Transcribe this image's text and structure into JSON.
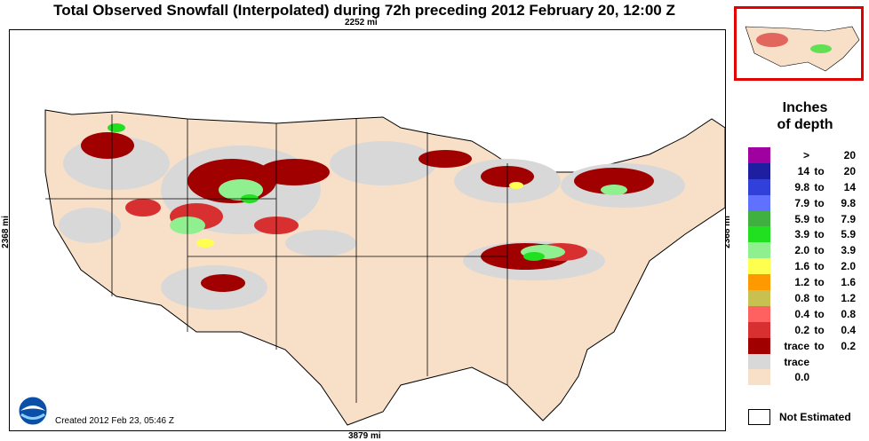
{
  "title": "Total Observed Snowfall (Interpolated) during 72h preceding 2012 February 20, 12:00 Z",
  "distance_top": "2252 mi",
  "distance_bottom": "3879 mi",
  "distance_left": "2368 mi",
  "distance_right": "2368 mi",
  "created": "Created 2012 Feb 23, 05:46 Z",
  "legend_title_1": "Inches",
  "legend_title_2": "of depth",
  "legend": [
    {
      "lo": ">",
      "to": "",
      "hi": "20",
      "color": "#a000a0"
    },
    {
      "lo": "14",
      "to": "to",
      "hi": "20",
      "color": "#1e1ea0"
    },
    {
      "lo": "9.8",
      "to": "to",
      "hi": "14",
      "color": "#3040d8"
    },
    {
      "lo": "7.9",
      "to": "to",
      "hi": "9.8",
      "color": "#6070ff"
    },
    {
      "lo": "5.9",
      "to": "to",
      "hi": "7.9",
      "color": "#40b040"
    },
    {
      "lo": "3.9",
      "to": "to",
      "hi": "5.9",
      "color": "#20e020"
    },
    {
      "lo": "2.0",
      "to": "to",
      "hi": "3.9",
      "color": "#90f090"
    },
    {
      "lo": "1.6",
      "to": "to",
      "hi": "2.0",
      "color": "#ffff50"
    },
    {
      "lo": "1.2",
      "to": "to",
      "hi": "1.6",
      "color": "#ff9900"
    },
    {
      "lo": "0.8",
      "to": "to",
      "hi": "1.2",
      "color": "#c8c050"
    },
    {
      "lo": "0.4",
      "to": "to",
      "hi": "0.8",
      "color": "#ff6060"
    },
    {
      "lo": "0.2",
      "to": "to",
      "hi": "0.4",
      "color": "#d83030"
    },
    {
      "lo": "trace",
      "to": "to",
      "hi": "0.2",
      "color": "#a00000"
    },
    {
      "lo": "trace",
      "to": "",
      "hi": "",
      "color": "#d8d8d8"
    },
    {
      "lo": "0.0",
      "to": "",
      "hi": "",
      "color": "#f8e0c8"
    }
  ],
  "not_estimated": "Not Estimated"
}
